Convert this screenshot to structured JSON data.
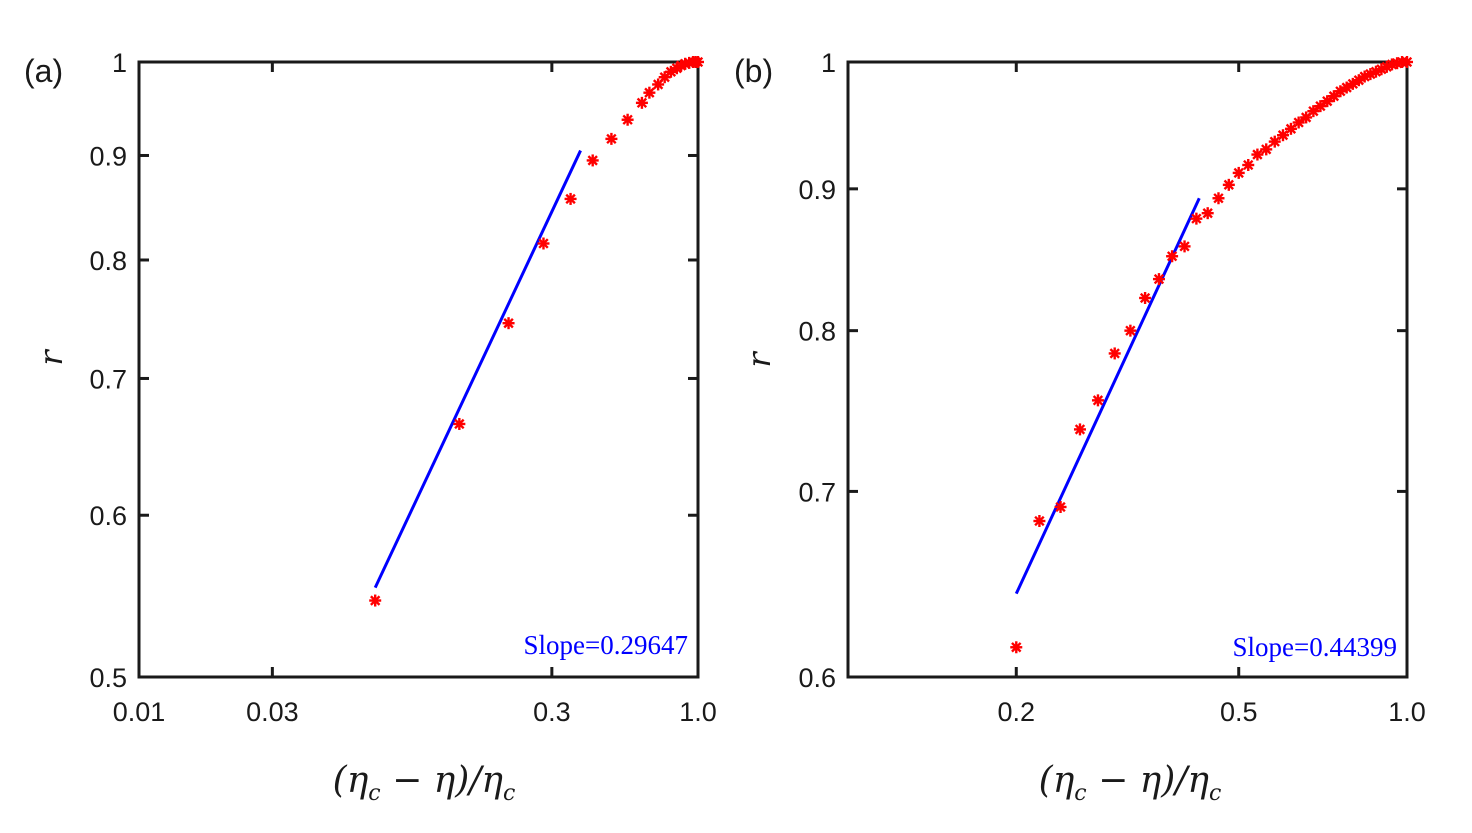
{
  "colors": {
    "marker": "#ff0000",
    "fit": "#0000ff",
    "axis": "#1a1a1a",
    "text": "#1a1a1a",
    "slope_text": "#0000ff"
  },
  "chart_data": [
    {
      "panel": "(a)",
      "type": "scatter",
      "xscale": "log",
      "yscale": "log",
      "xlim": [
        0.01,
        1.0
      ],
      "ylim": [
        0.5,
        1.0
      ],
      "xticks": [
        0.01,
        0.03,
        0.3,
        1.0
      ],
      "xtick_labels": [
        "0.01",
        "0.03",
        "0.3",
        "1.0"
      ],
      "yticks": [
        0.5,
        0.6,
        0.7,
        0.8,
        0.9,
        1.0
      ],
      "ytick_labels": [
        "0.5",
        "0.6",
        "0.7",
        "0.8",
        "0.9",
        "1"
      ],
      "xlabel": "(η_c − η)/η_c",
      "ylabel": "r",
      "series": [
        {
          "name": "data",
          "marker": "*",
          "x": [
            0.07,
            0.14,
            0.21,
            0.28,
            0.35,
            0.42,
            0.49,
            0.56,
            0.63,
            0.67,
            0.72,
            0.76,
            0.8,
            0.84,
            0.87,
            0.9,
            0.93,
            0.96,
            0.98,
            1.0
          ],
          "y": [
            0.545,
            0.665,
            0.745,
            0.815,
            0.857,
            0.895,
            0.917,
            0.937,
            0.955,
            0.966,
            0.975,
            0.983,
            0.989,
            0.993,
            0.996,
            0.998,
            0.999,
            1.0,
            1.0,
            1.0
          ]
        },
        {
          "name": "fit",
          "type": "line",
          "x": [
            0.07,
            0.38
          ],
          "y": [
            0.553,
            0.905
          ]
        }
      ],
      "annotation": "Slope=0.29647",
      "slope": 0.29647
    },
    {
      "panel": "(b)",
      "type": "scatter",
      "xscale": "log",
      "yscale": "log",
      "xlim": [
        0.1,
        1.0
      ],
      "ylim": [
        0.6,
        1.0
      ],
      "xticks": [
        0.2,
        0.5,
        1.0
      ],
      "xtick_labels": [
        "0.2",
        "0.5",
        "1.0"
      ],
      "yticks": [
        0.6,
        0.7,
        0.8,
        0.9,
        1.0
      ],
      "ytick_labels": [
        "0.6",
        "0.7",
        "0.8",
        "0.9",
        "1"
      ],
      "xlabel": "(η_c − η)/η_c",
      "ylabel": "r",
      "series": [
        {
          "name": "data",
          "marker": "*",
          "x": [
            0.2,
            0.22,
            0.24,
            0.26,
            0.28,
            0.3,
            0.32,
            0.34,
            0.36,
            0.38,
            0.4,
            0.42,
            0.44,
            0.46,
            0.48,
            0.5,
            0.52,
            0.54,
            0.56,
            0.58,
            0.6,
            0.62,
            0.64,
            0.66,
            0.68,
            0.7,
            0.72,
            0.74,
            0.76,
            0.78,
            0.8,
            0.82,
            0.84,
            0.86,
            0.88,
            0.9,
            0.92,
            0.94,
            0.96,
            0.98,
            1.0
          ],
          "y": [
            0.615,
            0.683,
            0.691,
            0.737,
            0.755,
            0.785,
            0.8,
            0.822,
            0.835,
            0.851,
            0.858,
            0.878,
            0.882,
            0.893,
            0.903,
            0.912,
            0.918,
            0.926,
            0.93,
            0.936,
            0.941,
            0.946,
            0.951,
            0.955,
            0.96,
            0.964,
            0.968,
            0.972,
            0.976,
            0.979,
            0.982,
            0.985,
            0.988,
            0.99,
            0.992,
            0.994,
            0.996,
            0.998,
            0.999,
            1.0,
            1.0
          ]
        },
        {
          "name": "fit",
          "type": "line",
          "x": [
            0.2,
            0.425
          ],
          "y": [
            0.643,
            0.893
          ]
        }
      ],
      "annotation": "Slope=0.44399",
      "slope": 0.44399
    }
  ]
}
